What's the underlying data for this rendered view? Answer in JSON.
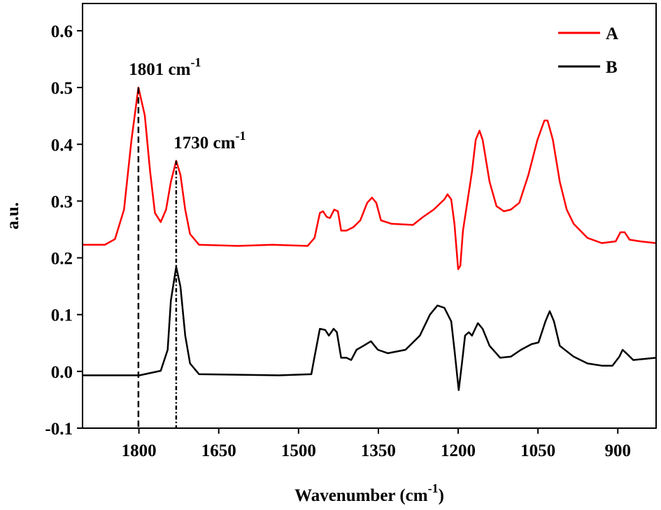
{
  "chart_data": {
    "type": "line",
    "ylabel": "a.u.",
    "xlabel": "Wavenumber (cm",
    "xlabel_sup": "-1",
    "xlabel_end": ")",
    "xlim": [
      1906,
      828
    ],
    "ylim": [
      -0.1,
      0.648
    ],
    "xticks": [
      1800,
      1650,
      1500,
      1350,
      1200,
      1050,
      900
    ],
    "yticks": [
      -0.1,
      {
        "value": 0,
        "label": "0.0"
      },
      0.1,
      0.2,
      0.3,
      0.4,
      0.5,
      0.6
    ],
    "legend": "upper right",
    "series": [
      {
        "name": "A",
        "color": "#ff0000",
        "x": [
          1906,
          1864,
          1845,
          1828,
          1814,
          1801,
          1789,
          1779,
          1770,
          1759,
          1749,
          1740,
          1730,
          1722,
          1713,
          1704,
          1687,
          1614,
          1549,
          1483,
          1470,
          1460,
          1454,
          1447,
          1441,
          1433,
          1426,
          1420,
          1410,
          1397,
          1384,
          1371,
          1362,
          1354,
          1345,
          1325,
          1285,
          1266,
          1246,
          1226,
          1220,
          1213,
          1207,
          1200,
          1196,
          1191,
          1183,
          1174,
          1167,
          1160,
          1154,
          1141,
          1128,
          1114,
          1101,
          1085,
          1068,
          1051,
          1038,
          1032,
          1022,
          1009,
          996,
          983,
          957,
          930,
          904,
          895,
          887,
          878,
          858,
          828
        ],
        "values": [
          0.223,
          0.223,
          0.233,
          0.285,
          0.408,
          0.5,
          0.451,
          0.352,
          0.279,
          0.263,
          0.285,
          0.334,
          0.371,
          0.346,
          0.285,
          0.242,
          0.223,
          0.221,
          0.223,
          0.221,
          0.235,
          0.279,
          0.282,
          0.272,
          0.27,
          0.285,
          0.282,
          0.248,
          0.248,
          0.254,
          0.266,
          0.297,
          0.306,
          0.297,
          0.266,
          0.26,
          0.258,
          0.272,
          0.285,
          0.303,
          0.312,
          0.303,
          0.26,
          0.18,
          0.186,
          0.248,
          0.297,
          0.352,
          0.408,
          0.424,
          0.408,
          0.334,
          0.291,
          0.282,
          0.285,
          0.297,
          0.346,
          0.408,
          0.442,
          0.442,
          0.408,
          0.334,
          0.285,
          0.26,
          0.235,
          0.226,
          0.229,
          0.245,
          0.245,
          0.232,
          0.229,
          0.226
        ]
      },
      {
        "name": "B",
        "color": "#000000",
        "x": [
          1906,
          1799,
          1759,
          1746,
          1740,
          1730,
          1722,
          1713,
          1704,
          1687,
          1536,
          1476,
          1470,
          1460,
          1450,
          1443,
          1434,
          1428,
          1420,
          1410,
          1401,
          1391,
          1378,
          1364,
          1351,
          1332,
          1299,
          1272,
          1253,
          1239,
          1226,
          1213,
          1207,
          1199,
          1193,
          1187,
          1180,
          1174,
          1163,
          1154,
          1141,
          1121,
          1101,
          1082,
          1062,
          1049,
          1036,
          1028,
          1020,
          1009,
          983,
          957,
          930,
          910,
          897,
          891,
          884,
          871,
          828
        ],
        "values": [
          -0.007,
          -0.007,
          0.001,
          0.038,
          0.125,
          0.184,
          0.149,
          0.063,
          0.014,
          -0.005,
          -0.007,
          -0.005,
          0.026,
          0.075,
          0.073,
          0.063,
          0.075,
          0.069,
          0.024,
          0.024,
          0.02,
          0.038,
          0.045,
          0.053,
          0.038,
          0.032,
          0.038,
          0.063,
          0.1,
          0.116,
          0.112,
          0.088,
          0.038,
          -0.033,
          0.014,
          0.063,
          0.069,
          0.063,
          0.085,
          0.075,
          0.045,
          0.024,
          0.026,
          0.038,
          0.048,
          0.051,
          0.088,
          0.106,
          0.088,
          0.045,
          0.026,
          0.014,
          0.01,
          0.01,
          0.026,
          0.038,
          0.032,
          0.02,
          0.024
        ]
      }
    ],
    "annotations": [
      {
        "text": "1801 cm",
        "sup": "-1",
        "x": 1801,
        "peak": 0.5,
        "linestyle": "dashed"
      },
      {
        "text": "1730 cm",
        "sup": "-1",
        "x": 1730,
        "peak": 0.371,
        "linestyle": "dashdot"
      }
    ]
  }
}
